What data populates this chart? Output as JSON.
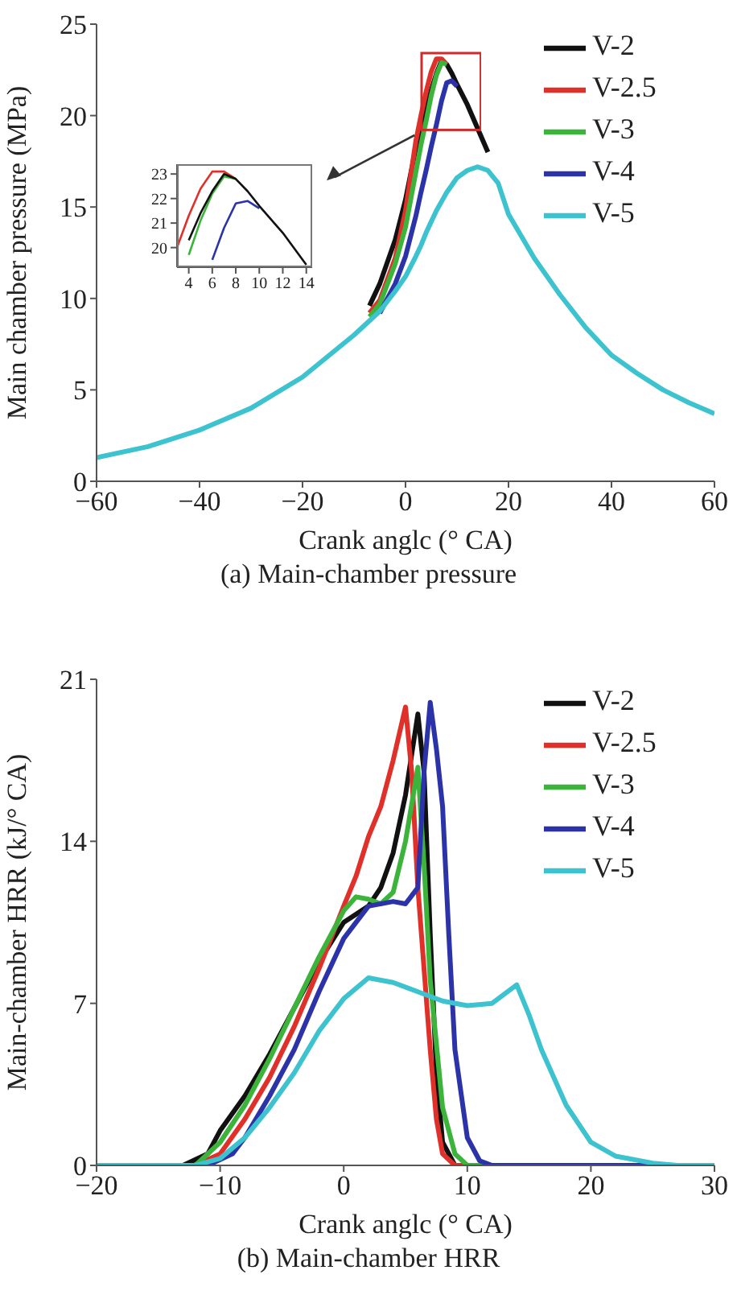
{
  "chart_data": [
    {
      "type": "line",
      "title": "(a) Main-chamber pressure",
      "xlabel": "Crank anglc (° CA)",
      "ylabel": "Main chamber pressure (MPa)",
      "xlim": [
        -60,
        60
      ],
      "xticks": [
        -60,
        -40,
        -20,
        0,
        20,
        40,
        60
      ],
      "ylim": [
        0,
        25
      ],
      "yticks": [
        0,
        5,
        10,
        15,
        20,
        25
      ],
      "legend": "top right",
      "series": [
        {
          "name": "V-2",
          "color": "#111111",
          "x": [
            -7,
            -5,
            -2,
            0,
            2,
            3,
            4,
            5,
            6,
            7,
            8,
            9,
            10,
            12,
            14,
            16
          ],
          "values": [
            9.6,
            10.8,
            13.2,
            15.4,
            18.2,
            19.2,
            20.3,
            21.4,
            22.3,
            23.0,
            22.8,
            22.3,
            21.7,
            20.6,
            19.3,
            18.0
          ]
        },
        {
          "name": "V-2.5",
          "color": "#e0302a",
          "x": [
            -7,
            -5,
            -2,
            0,
            2,
            3,
            4,
            5,
            6,
            7,
            8
          ],
          "values": [
            9.2,
            9.9,
            12.2,
            14.8,
            18.6,
            20.0,
            21.3,
            22.4,
            23.1,
            23.1,
            22.8
          ]
        },
        {
          "name": "V-3",
          "color": "#3cb43c",
          "x": [
            -7,
            -5,
            -2,
            0,
            2,
            3,
            4,
            5,
            6,
            7,
            8
          ],
          "values": [
            9.0,
            9.7,
            11.9,
            13.9,
            16.9,
            18.4,
            19.7,
            21.1,
            22.2,
            22.9,
            22.8
          ]
        },
        {
          "name": "V-4",
          "color": "#2c33a8",
          "x": [
            -5,
            -2,
            0,
            2,
            3,
            4,
            5,
            6,
            7,
            8,
            9,
            10
          ],
          "values": [
            9.2,
            10.8,
            12.3,
            14.5,
            15.8,
            17.0,
            18.3,
            19.5,
            20.8,
            21.8,
            21.9,
            21.6
          ]
        },
        {
          "name": "V-5",
          "color": "#3cc3cf",
          "x": [
            -60,
            -50,
            -40,
            -30,
            -20,
            -10,
            -5,
            -2,
            0,
            2,
            3,
            4,
            5,
            6,
            7,
            8,
            9,
            10,
            12,
            14,
            16,
            18,
            20,
            25,
            30,
            35,
            40,
            45,
            50,
            55,
            60
          ],
          "values": [
            1.3,
            1.9,
            2.8,
            4.0,
            5.7,
            8.0,
            9.3,
            10.4,
            11.2,
            12.3,
            12.9,
            13.6,
            14.2,
            14.8,
            15.3,
            15.8,
            16.2,
            16.6,
            17.0,
            17.2,
            17.0,
            16.3,
            14.6,
            12.2,
            10.2,
            8.4,
            6.9,
            5.9,
            5.0,
            4.3,
            3.7
          ]
        }
      ]
    },
    {
      "type": "line",
      "xlim": [
        3,
        14.5
      ],
      "xticks": [
        4,
        6,
        8,
        10,
        12,
        14
      ],
      "ylim": [
        19.2,
        23.4
      ],
      "yticks": [
        20,
        21,
        22,
        23
      ],
      "series": [
        {
          "color": "#e0302a",
          "x": [
            3,
            4,
            5,
            6,
            7,
            8
          ],
          "values": [
            20.0,
            21.3,
            22.4,
            23.1,
            23.1,
            22.8
          ]
        },
        {
          "color": "#3cb43c",
          "x": [
            4,
            5,
            6,
            7,
            8
          ],
          "values": [
            19.7,
            21.1,
            22.2,
            22.9,
            22.8
          ]
        },
        {
          "color": "#2c33a8",
          "x": [
            6,
            7,
            8,
            9,
            10
          ],
          "values": [
            19.5,
            20.8,
            21.8,
            21.9,
            21.6
          ]
        },
        {
          "color": "#111111",
          "x": [
            4,
            5,
            6,
            7,
            8,
            9,
            10,
            12,
            14
          ],
          "values": [
            20.3,
            21.4,
            22.3,
            23.0,
            22.8,
            22.3,
            21.7,
            20.6,
            19.3
          ]
        }
      ]
    },
    {
      "type": "line",
      "title": "(b) Main-chamber HRR",
      "xlabel": "Crank anglc (° CA)",
      "ylabel": "Main-chamber HRR (kJ/° CA)",
      "xlim": [
        -20,
        30
      ],
      "xticks": [
        -20,
        -10,
        0,
        10,
        20,
        30
      ],
      "ylim": [
        0,
        21
      ],
      "yticks": [
        0,
        7,
        14,
        21
      ],
      "legend": "top right",
      "series": [
        {
          "name": "V-2",
          "color": "#111111",
          "x": [
            -20,
            -13,
            -11,
            -10,
            -8,
            -6,
            -4,
            -2,
            0,
            2,
            3,
            4,
            5,
            6,
            6.5,
            7,
            7.5,
            8,
            9,
            30
          ],
          "values": [
            0,
            0,
            0.5,
            1.5,
            3.0,
            4.8,
            6.8,
            8.8,
            10.5,
            11.2,
            12.0,
            13.5,
            16.0,
            19.5,
            17.0,
            10,
            4,
            1,
            0,
            0
          ]
        },
        {
          "name": "V-2.5",
          "color": "#e0302a",
          "x": [
            -20,
            -12,
            -10,
            -8,
            -6,
            -4,
            -2,
            0,
            1,
            2,
            3,
            4,
            5,
            5.5,
            6,
            7,
            7.5,
            8,
            9,
            30
          ],
          "values": [
            0,
            0,
            0.5,
            2.0,
            3.8,
            6.0,
            8.5,
            11.2,
            12.5,
            14.2,
            15.5,
            17.5,
            19.8,
            17,
            12,
            5,
            2,
            0.5,
            0,
            0
          ]
        },
        {
          "name": "V-3",
          "color": "#3cb43c",
          "x": [
            -20,
            -12,
            -10,
            -8,
            -6,
            -4,
            -2,
            0,
            1,
            2,
            3,
            4,
            5,
            6,
            6.5,
            7,
            8,
            9,
            10,
            30
          ],
          "values": [
            0,
            0,
            1,
            2.6,
            4.6,
            6.8,
            9.0,
            11.0,
            11.6,
            11.5,
            11.3,
            11.8,
            14,
            17.2,
            13,
            8,
            2.5,
            0.5,
            0,
            0
          ]
        },
        {
          "name": "V-4",
          "color": "#2c33a8",
          "x": [
            -20,
            -11,
            -9,
            -8,
            -6,
            -4,
            -2,
            0,
            2,
            4,
            5,
            6,
            6.5,
            7,
            7.5,
            8,
            8.5,
            9,
            10,
            11,
            12,
            30
          ],
          "values": [
            0,
            0,
            0.5,
            1.2,
            3.0,
            5.0,
            7.5,
            9.8,
            11.2,
            11.4,
            11.3,
            12,
            17,
            20.0,
            18,
            15.5,
            10,
            5,
            1.2,
            0.2,
            0,
            0
          ]
        },
        {
          "name": "V-5",
          "color": "#3cc3cf",
          "x": [
            -20,
            -12,
            -10,
            -8,
            -6,
            -4,
            -2,
            0,
            2,
            4,
            6,
            8,
            10,
            12,
            14,
            15,
            16,
            18,
            20,
            22,
            25,
            27,
            30
          ],
          "values": [
            0,
            0,
            0.3,
            1.2,
            2.5,
            4.0,
            5.8,
            7.2,
            8.1,
            7.9,
            7.5,
            7.1,
            6.9,
            7.0,
            7.8,
            6.5,
            5.0,
            2.6,
            1.0,
            0.4,
            0.1,
            0,
            0
          ]
        }
      ]
    }
  ]
}
